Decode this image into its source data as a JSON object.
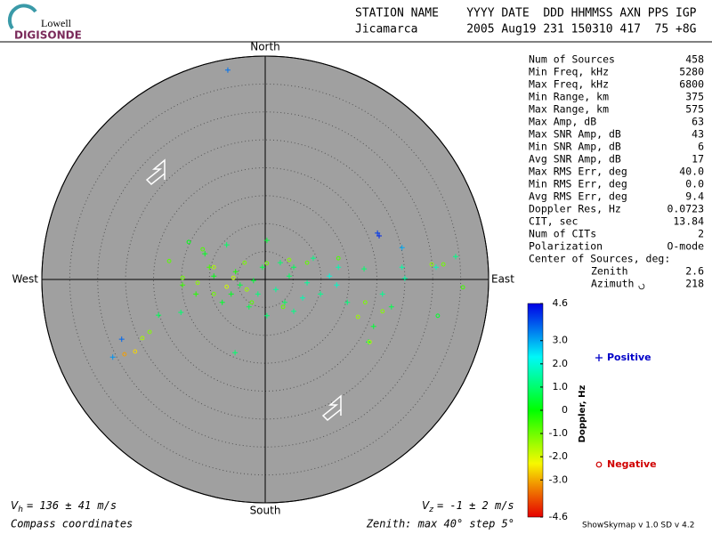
{
  "logo": {
    "line1": "Lowell",
    "line2": "DIGISONDE"
  },
  "header": {
    "labels": "STATION NAME    YYYY DATE  DDD HHMMSS AXN PPS IGP",
    "values": "Jicamarca       2005 Aug19 231 150310 417  75 +8G"
  },
  "stats": {
    "rows": [
      [
        "Num of Sources",
        "458"
      ],
      [
        "Min Freq, kHz",
        "5280"
      ],
      [
        "Max Freq, kHz",
        "6800"
      ],
      [
        "Min Range, km",
        "375"
      ],
      [
        "Max Range, km",
        "575"
      ],
      [
        "Max Amp, dB",
        "63"
      ],
      [
        "Max SNR Amp, dB",
        "43"
      ],
      [
        "Min SNR Amp, dB",
        "6"
      ],
      [
        "Avg SNR Amp, dB",
        "17"
      ],
      [
        "Max RMS Err, deg",
        "40.0"
      ],
      [
        "Min RMS Err, deg",
        "0.0"
      ],
      [
        "Avg RMS Err, deg",
        "9.4"
      ],
      [
        "Doppler Res, Hz",
        "0.0723"
      ],
      [
        "CIT, sec",
        "13.84"
      ],
      [
        "Num of CITs",
        "2"
      ],
      [
        "Polarization",
        "O-mode"
      ]
    ],
    "center_title": "Center of Sources, deg:",
    "center_rows": [
      [
        "Zenith",
        "2.6"
      ],
      [
        "Azimuth",
        "218"
      ]
    ]
  },
  "footer": {
    "vh": {
      "symbol": "V",
      "subscript": "h",
      "text": "= 136 ± 41 m/s"
    },
    "vz": {
      "symbol": "V",
      "subscript": "z",
      "text": "= -1 ± 2 m/s"
    },
    "coords": "Compass coordinates",
    "zenith": "Zenith: max 40°  step 5°",
    "version": "ShowSkymap v 1.0  SD v 4.2"
  },
  "chart_data": {
    "type": "skymap",
    "directions": {
      "north": "North",
      "south": "South",
      "east": "East",
      "west": "West"
    },
    "xlim": [
      -40,
      40
    ],
    "ylim": [
      -40,
      40
    ],
    "rticks": [
      5,
      10,
      15,
      20,
      25,
      30,
      35,
      40
    ],
    "colorbar": {
      "label": "Doppler, Hz",
      "lim": [
        -4.6,
        4.6
      ],
      "ticks": [
        -4.6,
        {
          "value": -3,
          "label": "-3.0"
        },
        {
          "value": -2,
          "label": "-2.0"
        },
        {
          "value": -1,
          "label": "-1.0"
        },
        0,
        {
          "value": 1,
          "label": "1.0"
        },
        {
          "value": 2,
          "label": "2.0"
        },
        {
          "value": 3,
          "label": "3.0"
        },
        4.6
      ]
    },
    "series": [
      {
        "name": "Positive",
        "marker": "+",
        "color": "#0000c8",
        "x": [
          -6.7,
          20.1,
          20.4,
          24.5,
          24.5,
          34.1,
          -25.7,
          -27.3,
          -5.4,
          -19.1,
          -15.1,
          19.4,
          18.5,
          25.0,
          12.8,
          13.1,
          17.7,
          8.6,
          5.1,
          0.3,
          -6.9,
          -10.8,
          -9.2,
          -4.5,
          -1.3,
          1.9,
          3.5,
          6.7,
          9.9,
          -2.9,
          0.3,
          -7.7,
          -12.4,
          -14.8,
          14.7,
          11.5,
          7.5,
          4.3,
          -5.3,
          -2.1,
          -0.5,
          2.7,
          -10.0,
          -6.1,
          5.1,
          22.6,
          21.0,
          30.6
        ],
        "y": [
          37.5,
          8.3,
          7.8,
          5.7,
          2.2,
          4.1,
          -10.7,
          -13.9,
          -13.1,
          -6.4,
          -5.9,
          -8.4,
          -11.2,
          0.2,
          -1.0,
          2.2,
          1.9,
          3.8,
          2.2,
          7.0,
          6.2,
          4.6,
          0.6,
          -1.0,
          -2.6,
          -1.8,
          -4.1,
          -3.3,
          -2.6,
          -4.9,
          -6.5,
          -4.1,
          -2.6,
          -1.0,
          -4.1,
          0.6,
          -0.6,
          0.6,
          1.4,
          -0.2,
          2.2,
          3.0,
          2.2,
          -2.6,
          -5.7,
          -4.9,
          -2.6,
          2.2
        ],
        "doppler": [
          3.5,
          4.0,
          4.2,
          3.0,
          1.5,
          1.2,
          3.6,
          3.2,
          1.0,
          0.8,
          1.0,
          0.5,
          0.6,
          1.5,
          1.8,
          1.6,
          1.0,
          1.2,
          0.8,
          0.5,
          0.9,
          0.3,
          0.2,
          0.6,
          1.1,
          1.4,
          0.9,
          1.6,
          1.3,
          0.7,
          1.0,
          0.4,
          -0.3,
          -0.5,
          1.1,
          2.0,
          1.4,
          0.9,
          -0.2,
          0.5,
          0.7,
          1.0,
          -0.6,
          0.3,
          1.2,
          0.7,
          1.3,
          1.7
        ]
      },
      {
        "name": "Negative",
        "marker": "o",
        "color": "#d00000",
        "x": [
          -25.2,
          -23.3,
          -22.0,
          -20.7,
          -17.2,
          -13.7,
          -11.2,
          -14.8,
          -12.1,
          -9.2,
          -6.9,
          -3.7,
          0.3,
          4.3,
          7.5,
          13.1,
          16.6,
          17.9,
          18.7,
          29.8,
          31.9,
          35.4,
          30.9,
          -3.3,
          -5.7,
          3.2,
          -9.2,
          -2.4,
          21.0
        ],
        "y": [
          -13.4,
          -12.9,
          -10.5,
          -9.4,
          3.3,
          6.7,
          5.4,
          0.3,
          -0.6,
          2.2,
          -1.3,
          3.0,
          2.9,
          3.5,
          3.0,
          3.8,
          -6.7,
          -4.1,
          -11.2,
          2.7,
          2.7,
          -1.4,
          -6.5,
          -1.8,
          0.3,
          -4.9,
          -2.6,
          -4.1,
          -5.7
        ],
        "doppler": [
          -3.1,
          -2.6,
          -1.5,
          -1.2,
          -0.8,
          0.2,
          -0.7,
          -1.0,
          -1.3,
          -1.6,
          -1.9,
          -1.1,
          -1.0,
          -1.2,
          -0.9,
          -0.7,
          -1.4,
          -1.1,
          -1.6,
          -1.3,
          -1.0,
          -0.6,
          0.4,
          -1.4,
          -1.7,
          -0.9,
          -1.0,
          -0.8,
          -1.2
        ]
      }
    ]
  }
}
